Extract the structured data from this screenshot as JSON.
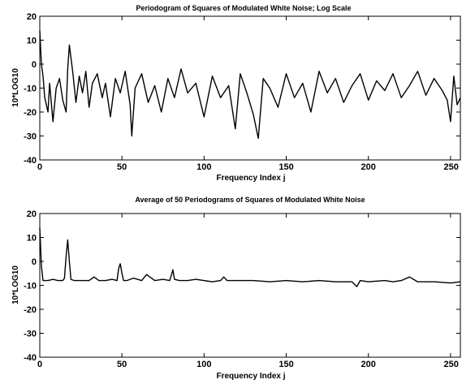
{
  "chart_data": [
    {
      "type": "line",
      "title": "Periodogram of Squares of Modulated White Noise;  Log Scale",
      "xlabel": "Frequency Index j",
      "ylabel": "10*LOG10",
      "xlim": [
        0,
        256
      ],
      "ylim": [
        -40,
        20
      ],
      "xticks": [
        0,
        50,
        100,
        150,
        200,
        250
      ],
      "yticks": [
        -40,
        -30,
        -20,
        -10,
        0,
        10,
        20
      ],
      "xtick_labels": [
        "0",
        "50",
        "100",
        "150",
        "200",
        "250"
      ],
      "ytick_labels": [
        "-40",
        "-30",
        "-20",
        "-10",
        "0",
        "10",
        "20"
      ],
      "grid": false,
      "series": [
        {
          "color": "#000000",
          "x": [
            0,
            1,
            2,
            3,
            5,
            6,
            8,
            10,
            12,
            14,
            16,
            17,
            18,
            20,
            22,
            24,
            26,
            28,
            30,
            32,
            35,
            38,
            40,
            43,
            46,
            49,
            52,
            55,
            56,
            58,
            62,
            66,
            70,
            74,
            78,
            82,
            86,
            90,
            95,
            100,
            105,
            110,
            115,
            119,
            122,
            126,
            130,
            133,
            136,
            140,
            145,
            150,
            155,
            160,
            165,
            170,
            175,
            180,
            185,
            190,
            195,
            200,
            205,
            210,
            215,
            220,
            225,
            230,
            235,
            240,
            245,
            248,
            250,
            252,
            254,
            256
          ],
          "y": [
            14,
            0,
            -5,
            -14,
            -20,
            -8,
            -24,
            -10,
            -6,
            -15,
            -20,
            -2,
            8,
            -3,
            -16,
            -5,
            -12,
            -3,
            -18,
            -8,
            -4,
            -14,
            -8,
            -22,
            -6,
            -12,
            -3,
            -17,
            -30,
            -10,
            -4,
            -16,
            -9,
            -20,
            -6,
            -14,
            -2,
            -12,
            -8,
            -22,
            -5,
            -14,
            -9,
            -27,
            -4,
            -12,
            -21,
            -31,
            -6,
            -10,
            -18,
            -4,
            -14,
            -8,
            -20,
            -3,
            -12,
            -6,
            -16,
            -9,
            -4,
            -15,
            -7,
            -11,
            -4,
            -14,
            -9,
            -3,
            -13,
            -6,
            -11,
            -15,
            -24,
            -5,
            -17,
            -14
          ]
        }
      ]
    },
    {
      "type": "line",
      "title": "Average of 50 Periodograms of Squares of Modulated White Noise",
      "xlabel": "Frequency Index j",
      "ylabel": "10*LOG10",
      "xlim": [
        0,
        256
      ],
      "ylim": [
        -40,
        20
      ],
      "xticks": [
        0,
        50,
        100,
        150,
        200,
        250
      ],
      "yticks": [
        -40,
        -30,
        -20,
        -10,
        0,
        10,
        20
      ],
      "xtick_labels": [
        "0",
        "50",
        "100",
        "150",
        "200",
        "250"
      ],
      "ytick_labels": [
        "-40",
        "-30",
        "-20",
        "-10",
        "0",
        "10",
        "20"
      ],
      "grid": false,
      "series": [
        {
          "color": "#000000",
          "x": [
            0,
            1,
            2,
            3,
            5,
            8,
            11,
            14,
            15,
            16,
            17,
            18,
            19,
            21,
            25,
            30,
            33,
            36,
            40,
            44,
            47,
            48,
            49,
            50,
            51,
            53,
            57,
            62,
            65,
            70,
            75,
            79,
            80,
            81,
            82,
            85,
            90,
            95,
            100,
            105,
            110,
            112,
            114,
            120,
            130,
            140,
            150,
            160,
            170,
            180,
            190,
            193,
            195,
            200,
            210,
            215,
            220,
            225,
            230,
            240,
            250,
            256
          ],
          "y": [
            14,
            -2,
            -8,
            -8,
            -8,
            -7.5,
            -8,
            -8,
            -7,
            2,
            9,
            0,
            -7.5,
            -8,
            -8,
            -8,
            -6.5,
            -8,
            -8,
            -7.5,
            -8,
            -3,
            -1,
            -5,
            -8,
            -8,
            -7,
            -8,
            -5.5,
            -8,
            -7.5,
            -8,
            -6,
            -3.5,
            -7.5,
            -8,
            -8,
            -7.5,
            -8,
            -8.5,
            -8,
            -6.5,
            -8,
            -8,
            -8,
            -8.5,
            -8,
            -8.5,
            -8,
            -8.5,
            -8.5,
            -10.5,
            -8,
            -8.5,
            -8,
            -8.5,
            -8,
            -6.5,
            -8.5,
            -8.5,
            -9,
            -8.5
          ]
        }
      ]
    }
  ]
}
